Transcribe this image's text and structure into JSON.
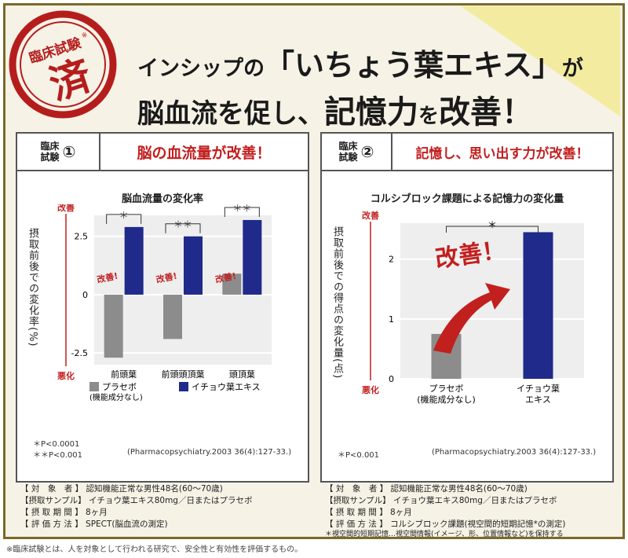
{
  "header": {
    "stamp_line1": "臨床試験",
    "stamp_mark": "※",
    "stamp_char": "済",
    "line1_prefix": "インシップの",
    "line1_product": "「いちょう葉エキス」",
    "line1_suffix": "が",
    "line2_a": "脳血流を促し、",
    "line2_b": "記憶力",
    "line2_c": "を",
    "line2_d": "改善！"
  },
  "panel1": {
    "tag": "臨床試験①",
    "tag_a": "臨床",
    "tag_b": "試験",
    "tag_num": "①",
    "headline": "脳の血流量が改善！",
    "ylabel": "摂取前後での変化率(%)",
    "up_label": "改善",
    "down_label": "悪化",
    "kaizen": "改善!",
    "legend_placebo": "プラセボ",
    "legend_placebo_sub": "(機能成分なし)",
    "legend_ginkgo": "イチョウ葉エキス",
    "note1": "＊P<0.0001",
    "note2": "＊＊P<0.001",
    "citation": "(Pharmacopsychiatry.2003 36(4):127-33.)",
    "info": [
      "【 対　象　者 】 認知機能正常な男性48名(60〜70歳)",
      "【摂取サンプル】 イチョウ葉エキス80mg／日またはプラセボ",
      "【 摂 取 期 間 】 8ヶ月",
      "【 評 価 方 法 】 SPECT(脳血流の測定)"
    ]
  },
  "panel2": {
    "tag_a": "臨床",
    "tag_b": "試験",
    "tag_num": "②",
    "headline": "記憶し、思い出す力が改善！",
    "ylabel": "摂取前後での得点の変化量(点)",
    "up_label": "改善",
    "down_label": "悪化",
    "kaizen": "改善！",
    "note1": "＊P<0.001",
    "citation": "(Pharmacopsychiatry.2003 36(4):127-33.)",
    "info": [
      "【 対　象　者 】 認知機能正常な男性48名(60〜70歳)",
      "【摂取サンプル】 イチョウ葉エキス80mg／日またはプラセボ",
      "【 摂 取 期 間 】 8ヶ月",
      "【 評 価 方 法 】 コルシブロック課題(視空間的短期記憶*の測定)",
      "＊視空間的短期記憶…視空間情報(イメージ、形、位置情報など)を保持する"
    ]
  },
  "footer": "※臨床試験とは、人を対象として行われる研究で、安全性と有効性を評価するもの。",
  "colors": {
    "placebo": "#8c8c8c",
    "ginkgo": "#1f2a8a",
    "accent_red": "#c21f1f",
    "gold": "#7a6a28"
  },
  "chart_data": [
    {
      "type": "bar",
      "title": "脳血流量の変化率",
      "ylabel": "摂取前後での変化率(%)",
      "categories": [
        "前頭葉",
        "前頭頭頂葉",
        "頭頂葉"
      ],
      "series": [
        {
          "name": "プラセボ",
          "values": [
            -2.7,
            -1.9,
            0.9
          ]
        },
        {
          "name": "イチョウ葉エキス",
          "values": [
            2.9,
            2.5,
            3.2
          ]
        }
      ],
      "significance": [
        "＊",
        "＊＊",
        "＊＊"
      ],
      "ylim": [
        -3.0,
        3.4
      ],
      "yticks": [
        -2.5,
        0,
        2.5
      ],
      "yticklabels": [
        "-2.5",
        "0",
        "2.5"
      ],
      "grid": true
    },
    {
      "type": "bar",
      "title": "コルシブロック課題による記憶力の変化量",
      "ylabel": "摂取前後での得点の変化量(点)",
      "categories": [
        "プラセボ\n(機能成分なし)",
        "イチョウ葉\nエキス"
      ],
      "cat_line1": [
        "プラセボ",
        "イチョウ葉"
      ],
      "cat_line2": [
        "(機能成分なし)",
        "エキス"
      ],
      "values": [
        0.75,
        2.45
      ],
      "bar_colors": [
        "#8c8c8c",
        "#1f2a8a"
      ],
      "significance": [
        "＊"
      ],
      "ylim": [
        0,
        2.6
      ],
      "yticks": [
        0,
        1,
        2
      ],
      "yticklabels": [
        "0",
        "1",
        "2"
      ],
      "grid": true
    }
  ]
}
